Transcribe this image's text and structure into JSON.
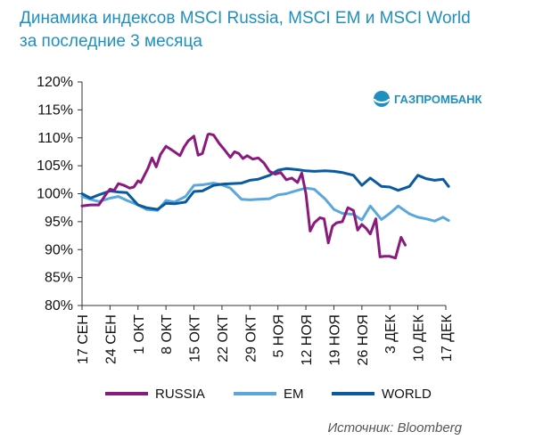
{
  "title": {
    "line1": "Динамика индексов MSCI Russia, MSCI EM и MSCI World",
    "line2": "за последние 3 месяца"
  },
  "logo": {
    "text": "ГАЗПРОМБАНК",
    "icon": "gazprombank-logo-icon"
  },
  "source": "Источник: Bloomberg",
  "colors": {
    "russia": "#8b1a7f",
    "em": "#5aa7dd",
    "world": "#0a5aa0",
    "title": "#1f8fc0"
  },
  "chart_data": {
    "type": "line",
    "title": "Динамика индексов MSCI Russia, MSCI EM и MSCI World за последние 3 месяца",
    "xlabel": "",
    "ylabel": "",
    "ylim": [
      80,
      120
    ],
    "yticks": [
      "80%",
      "85%",
      "90%",
      "95%",
      "100%",
      "105%",
      "110%",
      "115%",
      "120%"
    ],
    "categories": [
      "17 СЕН",
      "24 СЕН",
      "1 ОКТ",
      "8 ОКТ",
      "15 ОКТ",
      "22 ОКТ",
      "29 ОКТ",
      "5 НОЯ",
      "12 НОЯ",
      "19 НОЯ",
      "26 НОЯ",
      "3 ДЕК",
      "10 ДЕК",
      "17 ДЕК"
    ],
    "legend_position": "bottom",
    "grid": false,
    "series": [
      {
        "name": "RUSSIA",
        "x": [
          0,
          0.3,
          0.6,
          0.9,
          1.0,
          1.15,
          1.3,
          1.5,
          1.7,
          1.85,
          2.0,
          2.1,
          2.2,
          2.35,
          2.5,
          2.65,
          2.8,
          3.0,
          3.15,
          3.3,
          3.5,
          3.65,
          3.8,
          4.0,
          4.15,
          4.3,
          4.5,
          4.55,
          4.7,
          4.9,
          5.1,
          5.3,
          5.45,
          5.6,
          5.75,
          5.9,
          6.1,
          6.3,
          6.5,
          6.7,
          6.9,
          7.1,
          7.3,
          7.5,
          7.7,
          7.85,
          8.0,
          8.15,
          8.3,
          8.5,
          8.65,
          8.8,
          8.95,
          9.1,
          9.3,
          9.5,
          9.7,
          9.85,
          10.0,
          10.15,
          10.3,
          10.5,
          10.65,
          10.8,
          11.0,
          11.2,
          11.4,
          11.55,
          11.7,
          11.85,
          12.0,
          12.15,
          12.3,
          12.5,
          12.7,
          12.85,
          13.0,
          13.1
        ],
        "values": [
          97.8,
          98.0,
          98.0,
          100.2,
          100.8,
          100.6,
          101.8,
          101.5,
          101.0,
          101.2,
          102.3,
          102.0,
          103.0,
          104.5,
          106.4,
          104.8,
          107.0,
          108.5,
          108.0,
          107.5,
          106.8,
          108.4,
          109.5,
          110.3,
          106.9,
          107.2,
          110.6,
          110.7,
          110.5,
          109.0,
          107.8,
          106.5,
          107.5,
          107.2,
          106.3,
          106.8,
          106.2,
          106.4,
          105.5,
          104.0,
          103.5,
          103.8,
          102.5,
          102.8,
          102.0,
          103.7,
          100.0,
          93.3,
          94.8,
          95.7,
          95.5,
          91.2,
          94.2,
          94.8,
          95.0,
          97.5,
          97.0,
          93.5,
          94.5,
          93.8,
          92.8,
          95.5,
          88.7,
          88.8,
          88.8,
          88.5,
          92.2,
          90.8,
          null,
          null,
          null,
          null,
          null,
          null,
          null,
          null,
          null,
          null
        ]
      },
      {
        "name": "EM",
        "x": [
          0,
          0.3,
          0.6,
          1.0,
          1.3,
          1.6,
          2.0,
          2.3,
          2.7,
          3.0,
          3.3,
          3.7,
          4.0,
          4.3,
          4.7,
          5.0,
          5.3,
          5.7,
          6.0,
          6.3,
          6.7,
          7.0,
          7.3,
          7.7,
          8.0,
          8.3,
          8.7,
          9.0,
          9.3,
          9.7,
          10.0,
          10.3,
          10.7,
          11.0,
          11.3,
          11.7,
          12.0,
          12.3,
          12.6,
          12.9,
          13.1
        ],
        "values": [
          99.5,
          99.0,
          98.6,
          99.2,
          99.5,
          98.8,
          98.0,
          97.2,
          97.0,
          98.8,
          98.5,
          99.5,
          101.5,
          101.6,
          101.9,
          101.6,
          101.0,
          99.0,
          98.9,
          99.0,
          99.1,
          99.8,
          100.0,
          100.6,
          101.0,
          100.8,
          99.0,
          97.2,
          96.5,
          96.3,
          95.3,
          97.8,
          95.4,
          96.5,
          97.8,
          96.4,
          95.8,
          95.5,
          95.1,
          95.8,
          95.2
        ]
      },
      {
        "name": "WORLD",
        "x": [
          0,
          0.3,
          0.6,
          1.0,
          1.3,
          1.6,
          2.0,
          2.3,
          2.7,
          3.0,
          3.3,
          3.7,
          4.0,
          4.3,
          4.7,
          5.0,
          5.3,
          5.7,
          6.0,
          6.3,
          6.7,
          7.0,
          7.3,
          7.7,
          8.0,
          8.3,
          8.7,
          9.0,
          9.3,
          9.7,
          10.0,
          10.3,
          10.7,
          11.0,
          11.3,
          11.7,
          12.0,
          12.3,
          12.6,
          12.9,
          13.1
        ],
        "values": [
          100.0,
          99.2,
          99.8,
          100.5,
          100.3,
          100.2,
          98.0,
          97.5,
          97.2,
          98.3,
          98.2,
          98.5,
          100.4,
          100.5,
          101.5,
          101.7,
          101.8,
          101.9,
          102.4,
          102.6,
          103.3,
          104.2,
          104.5,
          104.3,
          104.1,
          104.0,
          104.1,
          104.0,
          103.8,
          103.3,
          101.5,
          102.8,
          101.3,
          101.2,
          100.6,
          101.3,
          103.3,
          102.7,
          102.4,
          102.6,
          101.3
        ]
      }
    ]
  }
}
